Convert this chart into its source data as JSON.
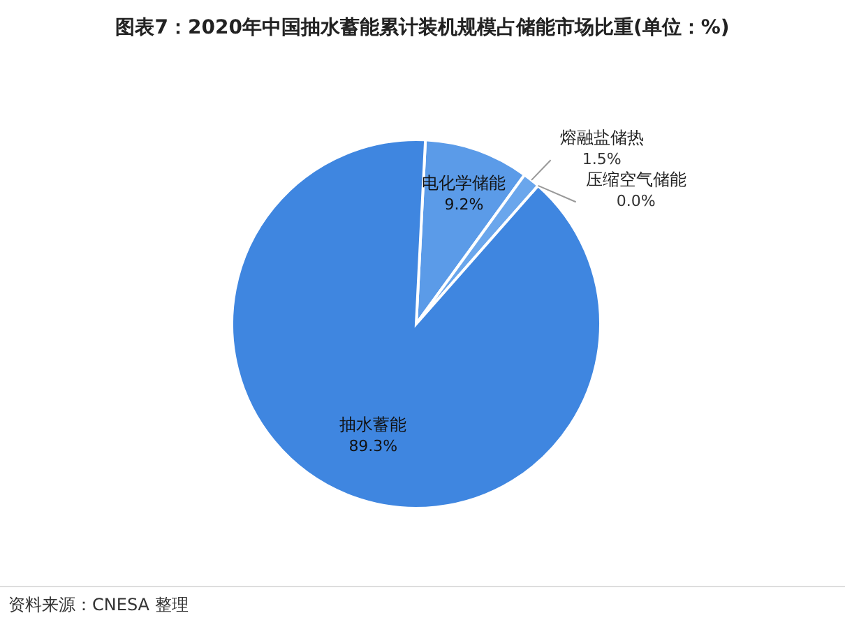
{
  "chart_data": {
    "type": "pie",
    "title": "图表7：2020年中国抽水蓄能累计装机规模占储能市场比重(单位：%)",
    "categories": [
      "电化学储能",
      "熔融盐储热",
      "压缩空气储能",
      "抽水蓄能"
    ],
    "values": [
      9.2,
      1.5,
      0.0,
      89.3
    ],
    "colors": [
      "#5b9be8",
      "#6aa6ec",
      "#6aa6ec",
      "#3f86e0"
    ],
    "value_labels": [
      "9.2%",
      "1.5%",
      "0.0%",
      "89.3%"
    ],
    "annotations": [
      "资料来源：CNESA 整理"
    ]
  }
}
